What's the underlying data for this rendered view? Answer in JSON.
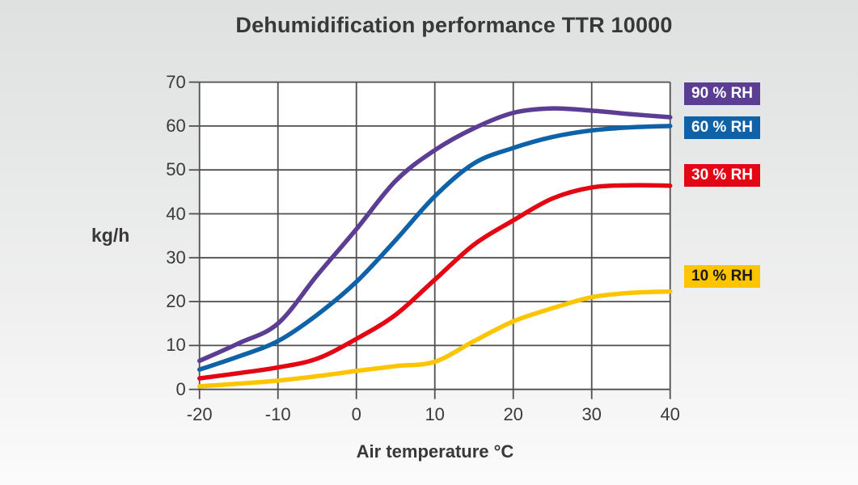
{
  "title": "Dehumidification performance TTR 10000",
  "chart_data": {
    "type": "line",
    "title": "Dehumidification performance TTR 10000",
    "xlabel": "Air temperature °C",
    "ylabel": "kg/h",
    "xlim": [
      -20,
      40
    ],
    "ylim": [
      0,
      70
    ],
    "x_ticks": [
      -20,
      -10,
      0,
      10,
      20,
      30,
      40
    ],
    "y_ticks": [
      0,
      10,
      20,
      30,
      40,
      50,
      60,
      70
    ],
    "grid": true,
    "legend_position": "right",
    "x": [
      -20,
      -15,
      -10,
      -5,
      0,
      5,
      10,
      15,
      20,
      25,
      30,
      35,
      40
    ],
    "series": [
      {
        "name": "90 % RH",
        "color": "#5c3d94",
        "text_color": "#ffffff",
        "values": [
          6.5,
          10.5,
          15,
          26,
          36.5,
          47.5,
          54.5,
          59.5,
          63,
          64,
          63.5,
          62.7,
          62
        ]
      },
      {
        "name": "60 % RH",
        "color": "#1062a8",
        "text_color": "#ffffff",
        "values": [
          4.5,
          7.5,
          11,
          17,
          24.5,
          34,
          44,
          51.5,
          55,
          57.5,
          59,
          59.7,
          60
        ]
      },
      {
        "name": "30 % RH",
        "color": "#e30613",
        "text_color": "#ffffff",
        "values": [
          2.5,
          3.7,
          5,
          7,
          11.5,
          17,
          25,
          33,
          38.5,
          43.5,
          46,
          46.5,
          46.4
        ]
      },
      {
        "name": "10 % RH",
        "color": "#fdc500",
        "text_color": "#1a1a1a",
        "values": [
          0.7,
          1.3,
          2,
          3,
          4.2,
          5.3,
          6.3,
          11,
          15.5,
          18.5,
          21,
          22,
          22.3
        ]
      }
    ]
  }
}
